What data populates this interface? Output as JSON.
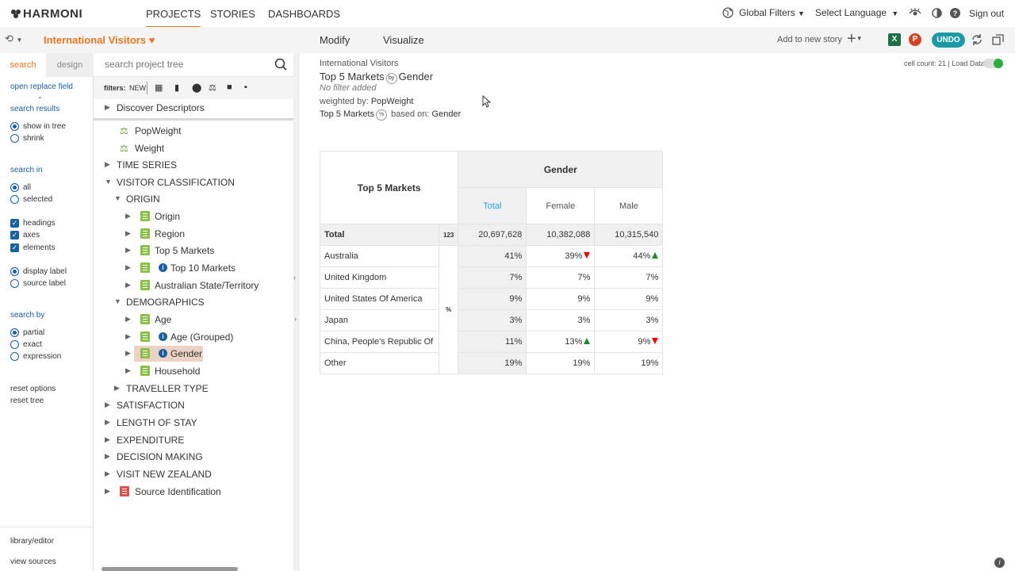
{
  "app": {
    "logo": "HARMONI"
  },
  "nav": {
    "tabs": [
      "PROJECTS",
      "STORIES",
      "DASHBOARDS"
    ],
    "global_filters": "Global Filters",
    "select_language": "Select Language",
    "sign_out": "Sign out"
  },
  "subbar": {
    "project_title": "International Visitors",
    "modify": "Modify",
    "visualize": "Visualize",
    "add_to_story": "Add to new story",
    "undo": "UNDO",
    "excel": "X",
    "ppt": "P"
  },
  "left": {
    "tabs": {
      "search": "search",
      "design": "design"
    },
    "open_replace": "open replace field",
    "search_results": "search results",
    "show_in_tree": "show in tree",
    "shrink": "shrink",
    "search_in": "search in",
    "all": "all",
    "selected": "selected",
    "headings": "headings",
    "axes": "axes",
    "elements": "elements",
    "display_label": "display label",
    "source_label": "source label",
    "search_by": "search by",
    "partial": "partial",
    "exact": "exact",
    "expression": "expression",
    "reset_options": "reset options",
    "reset_tree": "reset tree",
    "library_editor": "library/editor",
    "view_sources": "view sources"
  },
  "tree": {
    "search_placeholder": "search project tree",
    "filters_label": "filters:",
    "filters_new": "NEW",
    "items": [
      "Discover Descriptors",
      "PopWeight",
      "Weight",
      "TIME SERIES",
      "VISITOR CLASSIFICATION",
      "ORIGIN",
      "Origin",
      "Region",
      "Top 5 Markets",
      "Top 10 Markets",
      "Australian State/Territory",
      "DEMOGRAPHICS",
      "Age",
      "Age (Grouped)",
      "Gender",
      "Household",
      "TRAVELLER TYPE",
      "SATISFACTION",
      "LENGTH OF STAY",
      "EXPENDITURE",
      "DECISION MAKING",
      "VISIT NEW ZEALAND",
      "Source Identification"
    ]
  },
  "report": {
    "project": "International Visitors",
    "title_left": "Top 5 Markets",
    "by": "by",
    "title_right": "Gender",
    "no_filter": "No filter added",
    "weighted_label": "weighted by:",
    "weighted_value": "PopWeight",
    "based_left": "Top 5 Markets",
    "pct": "%",
    "based_label": "based on:",
    "based_value": "Gender",
    "cell_count": "cell count: 21  |  Load Data:"
  },
  "table": {
    "row_header": "Top 5 Markets",
    "col_group": "Gender",
    "columns": [
      "Total",
      "Female",
      "Male"
    ],
    "total_label": "Total",
    "total_stat": "123",
    "totals": [
      "20,697,628",
      "10,382,088",
      "10,315,540"
    ],
    "pct_stat": "%",
    "rows": [
      {
        "label": "Australia",
        "values": [
          "41%",
          "39%",
          "44%"
        ]
      },
      {
        "label": "United Kingdom",
        "values": [
          "7%",
          "7%",
          "7%"
        ]
      },
      {
        "label": "United States Of America",
        "values": [
          "9%",
          "9%",
          "9%"
        ]
      },
      {
        "label": "Japan",
        "values": [
          "3%",
          "3%",
          "3%"
        ]
      },
      {
        "label": "China, People's Republic Of",
        "values": [
          "11%",
          "13%",
          "9%"
        ]
      },
      {
        "label": "Other",
        "values": [
          "19%",
          "19%",
          "19%"
        ]
      }
    ]
  },
  "colors": {
    "accent": "#e87722",
    "link": "#1a5fa0",
    "undo": "#1b9aa5",
    "sig_up": "#1f8a2e",
    "sig_down": "#e00000",
    "total_col": "#2aa6d6"
  }
}
